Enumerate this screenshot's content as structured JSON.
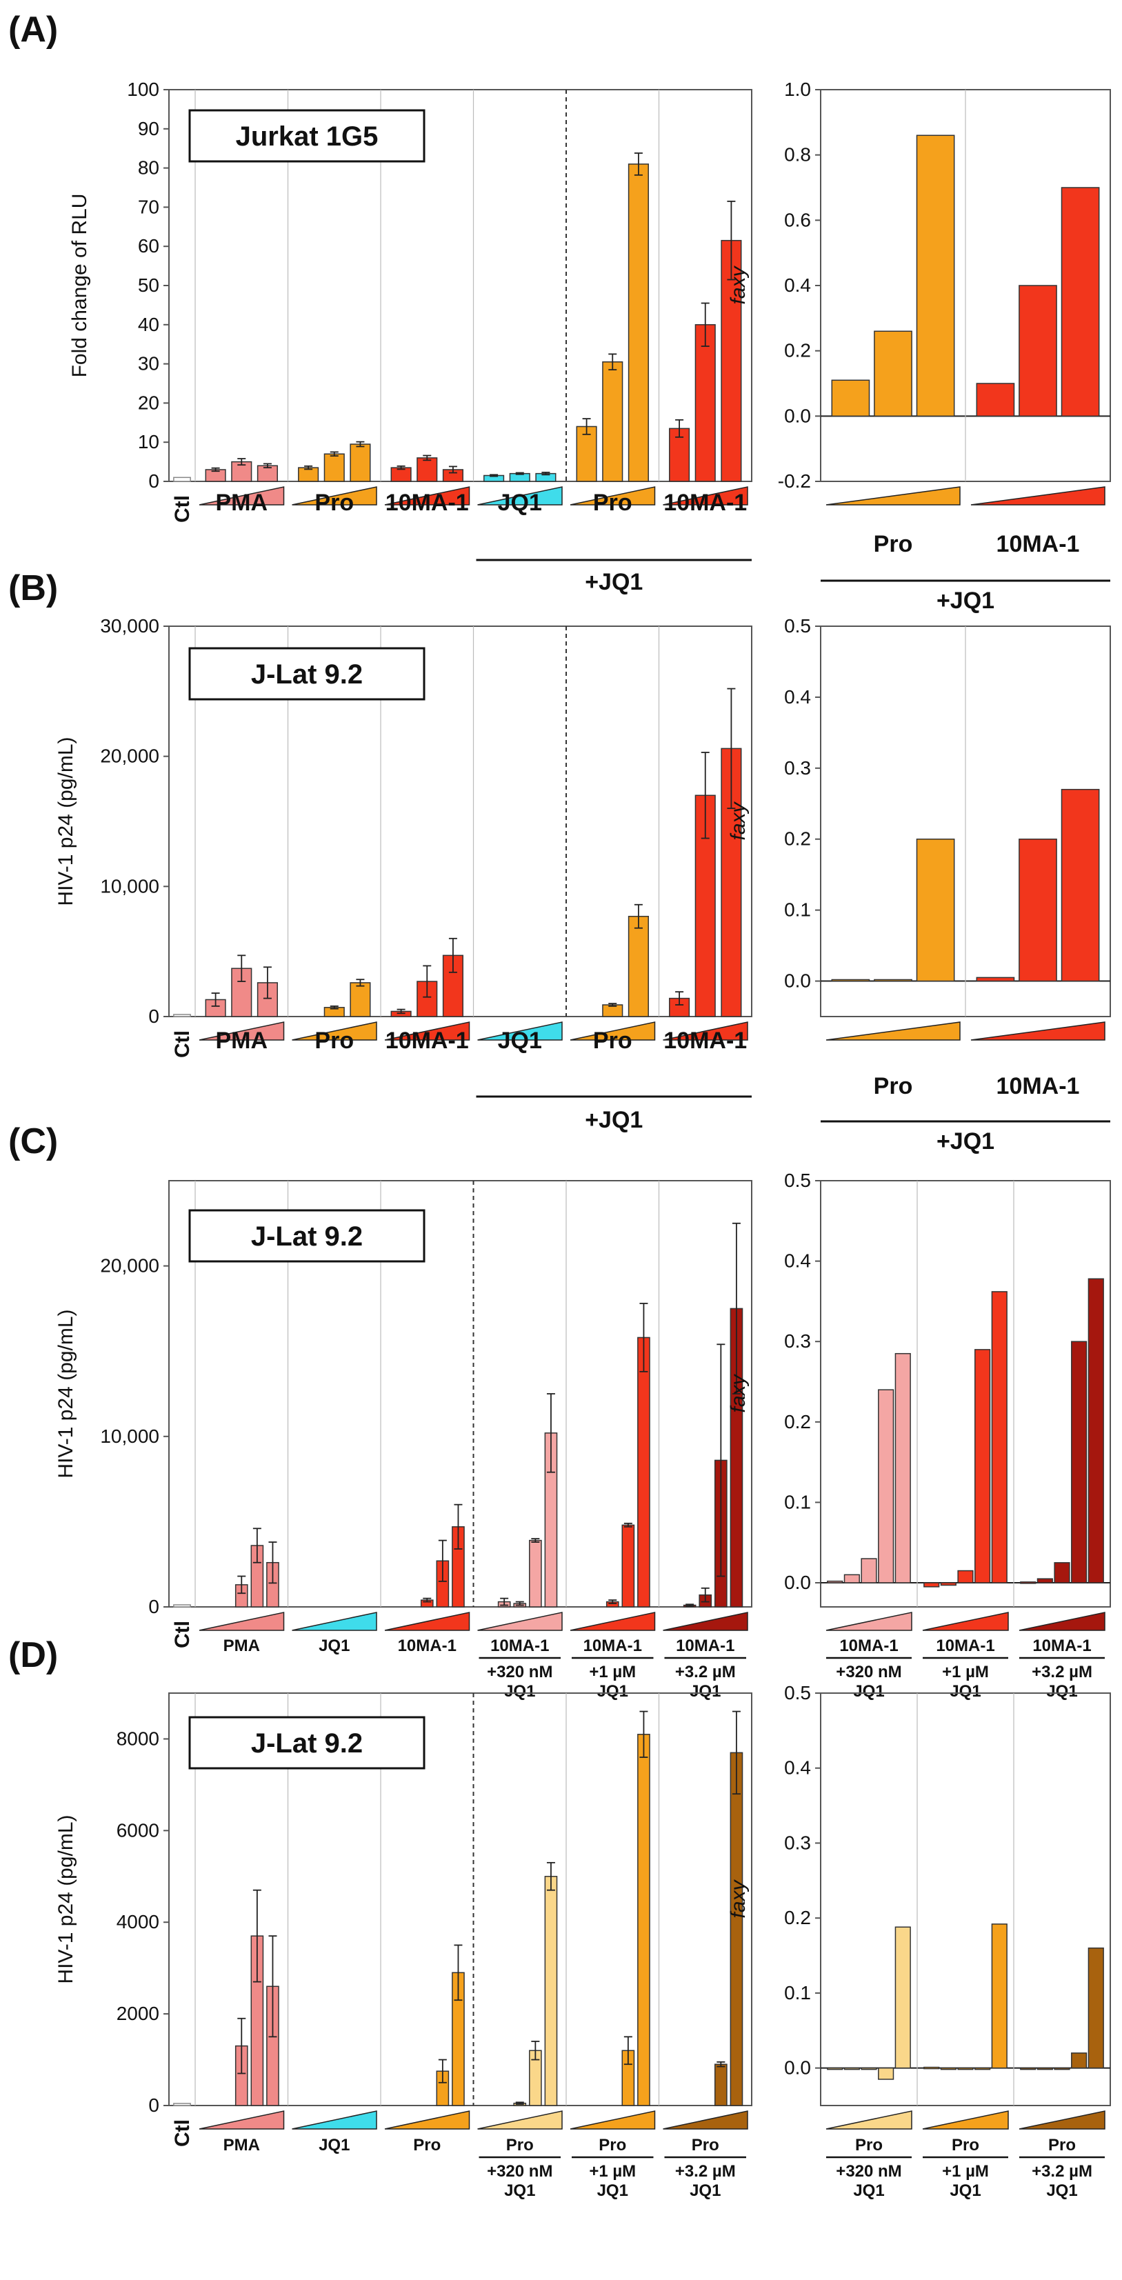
{
  "colors": {
    "pma": "#F08A88",
    "pma_light": "#F4A6A4",
    "pro": "#F5A11C",
    "pro_light": "#FAD78A",
    "pro_dark": "#A8620E",
    "ma": "#F2361C",
    "ma_dark": "#A5170E",
    "jq1": "#3FDCEB",
    "ctl": "#ffffff",
    "axis": "#555555",
    "grid": "#bbbbbb",
    "text": "#111111"
  },
  "chart_data": [
    {
      "panel": "(A)",
      "type": "bar",
      "cell_line": "Jurkat 1G5",
      "ylabel": "Fold change of RLU",
      "ylim": [
        0,
        100
      ],
      "yticks": [
        "0",
        "10",
        "20",
        "30",
        "40",
        "50",
        "60",
        "70",
        "80",
        "90",
        "100"
      ],
      "groups": [
        {
          "name": "Ctl",
          "color": "ctl",
          "values": [
            1
          ],
          "errors": [
            0
          ]
        },
        {
          "name": "PMA",
          "color": "pma",
          "values": [
            3,
            5,
            4
          ],
          "errors": [
            0.4,
            0.8,
            0.5
          ]
        },
        {
          "name": "Pro",
          "color": "pro",
          "values": [
            3.5,
            7,
            9.5
          ],
          "errors": [
            0.4,
            0.5,
            0.6
          ]
        },
        {
          "name": "10MA-1",
          "color": "ma",
          "values": [
            3.5,
            6,
            3
          ],
          "errors": [
            0.4,
            0.6,
            0.8
          ]
        },
        {
          "name": "JQ1",
          "color": "jq1",
          "values": [
            1.5,
            2,
            2
          ],
          "errors": [
            0.2,
            0.2,
            0.3
          ]
        },
        {
          "name": "Pro",
          "color": "pro",
          "values": [
            14,
            30.5,
            81
          ],
          "errors": [
            2,
            2,
            2.8
          ]
        },
        {
          "name": "10MA-1",
          "color": "ma",
          "values": [
            13.5,
            40,
            61.5
          ],
          "errors": [
            2.2,
            5.5,
            10
          ]
        }
      ],
      "bracket_label": "+JQ1",
      "faxy": {
        "ylabel": "faxy",
        "ylim": [
          -0.2,
          1.0
        ],
        "yticks": [
          "-0.2",
          "0.0",
          "0.2",
          "0.4",
          "0.6",
          "0.8",
          "1.0"
        ],
        "groups": [
          {
            "name": "Pro",
            "color": "pro",
            "values": [
              0.11,
              0.26,
              0.86
            ]
          },
          {
            "name": "10MA-1",
            "color": "ma",
            "values": [
              0.1,
              0.4,
              0.7
            ]
          }
        ],
        "bracket_label": "+JQ1"
      }
    },
    {
      "panel": "(B)",
      "type": "bar",
      "cell_line": "J-Lat 9.2",
      "ylabel": "HIV-1 p24 (pg/mL)",
      "ylim": [
        0,
        30000
      ],
      "yticks": [
        "0",
        "10,000",
        "20,000",
        "30,000"
      ],
      "groups": [
        {
          "name": "Ctl",
          "color": "ctl",
          "values": [
            0
          ],
          "errors": [
            0
          ]
        },
        {
          "name": "PMA",
          "color": "pma",
          "values": [
            1300,
            3700,
            2600
          ],
          "errors": [
            500,
            1000,
            1200
          ]
        },
        {
          "name": "Pro",
          "color": "pro",
          "values": [
            0,
            700,
            2600
          ],
          "errors": [
            0,
            100,
            250
          ]
        },
        {
          "name": "10MA-1",
          "color": "ma",
          "values": [
            400,
            2700,
            4700
          ],
          "errors": [
            150,
            1200,
            1300
          ]
        },
        {
          "name": "JQ1",
          "color": "jq1",
          "values": [
            0,
            0,
            0
          ],
          "errors": [
            0,
            0,
            0
          ]
        },
        {
          "name": "Pro",
          "color": "pro",
          "values": [
            0,
            900,
            7700
          ],
          "errors": [
            0,
            100,
            900
          ]
        },
        {
          "name": "10MA-1",
          "color": "ma",
          "values": [
            1400,
            17000,
            20600
          ],
          "errors": [
            500,
            3300,
            4600
          ]
        }
      ],
      "bracket_label": "+JQ1",
      "faxy": {
        "ylabel": "faxy",
        "ylim": [
          -0.05,
          0.5
        ],
        "yticks": [
          "0.0",
          "0.1",
          "0.2",
          "0.3",
          "0.4",
          "0.5"
        ],
        "groups": [
          {
            "name": "Pro",
            "color": "pro",
            "values": [
              0.002,
              0.002,
              0.2
            ]
          },
          {
            "name": "10MA-1",
            "color": "ma",
            "values": [
              0.005,
              0.2,
              0.27
            ]
          }
        ],
        "bracket_label": "+JQ1"
      }
    },
    {
      "panel": "(C)",
      "type": "bar",
      "cell_line": "J-Lat 9.2",
      "ylabel": "HIV-1 p24 (pg/mL)",
      "ylim": [
        0,
        25000
      ],
      "yticks": [
        "0",
        "10,000",
        "20,000"
      ],
      "groups": [
        {
          "name": "Ctl",
          "color": "ctl",
          "values": [
            0
          ],
          "errors": [
            0
          ]
        },
        {
          "name": "PMA",
          "color": "pma",
          "values": [
            0,
            0,
            1300,
            3600,
            2600
          ],
          "errors": [
            0,
            0,
            500,
            1000,
            1200
          ]
        },
        {
          "name": "JQ1",
          "color": "jq1",
          "values": [
            0,
            0,
            0,
            0,
            0
          ],
          "errors": [
            0,
            0,
            0,
            0,
            0
          ]
        },
        {
          "name": "10MA-1",
          "color": "ma",
          "values": [
            0,
            0,
            400,
            2700,
            4700
          ],
          "errors": [
            0,
            0,
            100,
            1200,
            1300
          ]
        },
        {
          "name": "10MA-1",
          "sub1": "+320 nM",
          "sub2": "JQ1",
          "color": "pma_light",
          "values": [
            0,
            300,
            200,
            3900,
            10200
          ],
          "errors": [
            0,
            200,
            100,
            100,
            2300
          ]
        },
        {
          "name": "10MA-1",
          "sub1": "+1 µM",
          "sub2": "JQ1",
          "color": "ma",
          "values": [
            0,
            0,
            300,
            4800,
            15800
          ],
          "errors": [
            0,
            0,
            100,
            100,
            2000
          ]
        },
        {
          "name": "10MA-1",
          "sub1": "+3.2 µM",
          "sub2": "JQ1",
          "color": "ma_dark",
          "values": [
            0,
            100,
            700,
            8600,
            17500
          ],
          "errors": [
            0,
            50,
            400,
            6800,
            5000
          ]
        }
      ],
      "faxy": {
        "ylabel": "faxy",
        "ylim": [
          -0.03,
          0.5
        ],
        "yticks": [
          "0.0",
          "0.1",
          "0.2",
          "0.3",
          "0.4",
          "0.5"
        ],
        "groups": [
          {
            "name": "10MA-1",
            "sub1": "+320 nM",
            "sub2": "JQ1",
            "color": "pma_light",
            "values": [
              0.002,
              0.01,
              0.03,
              0.24,
              0.285
            ]
          },
          {
            "name": "10MA-1",
            "sub1": "+1 µM",
            "sub2": "JQ1",
            "color": "ma",
            "values": [
              -0.005,
              -0.003,
              0.015,
              0.29,
              0.362
            ]
          },
          {
            "name": "10MA-1",
            "sub1": "+3.2 µM",
            "sub2": "JQ1",
            "color": "ma_dark",
            "values": [
              0.001,
              0.005,
              0.025,
              0.3,
              0.378
            ]
          }
        ]
      }
    },
    {
      "panel": "(D)",
      "type": "bar",
      "cell_line": "J-Lat 9.2",
      "ylabel": "HIV-1 p24 (pg/mL)",
      "ylim": [
        0,
        9000
      ],
      "yticks": [
        "0",
        "2000",
        "4000",
        "6000",
        "8000"
      ],
      "groups": [
        {
          "name": "Ctl",
          "color": "ctl",
          "values": [
            0
          ],
          "errors": [
            0
          ]
        },
        {
          "name": "PMA",
          "color": "pma",
          "values": [
            0,
            0,
            1300,
            3700,
            2600
          ],
          "errors": [
            0,
            0,
            600,
            1000,
            1100
          ]
        },
        {
          "name": "JQ1",
          "color": "jq1",
          "values": [
            0,
            0,
            0,
            0,
            0
          ],
          "errors": [
            0,
            0,
            0,
            0,
            0
          ]
        },
        {
          "name": "Pro",
          "color": "pro",
          "values": [
            0,
            0,
            0,
            750,
            2900
          ],
          "errors": [
            0,
            0,
            0,
            250,
            600
          ]
        },
        {
          "name": "Pro",
          "sub1": "+320 nM",
          "sub2": "JQ1",
          "color": "pro_light",
          "values": [
            0,
            0,
            50,
            1200,
            5000
          ],
          "errors": [
            0,
            0,
            20,
            200,
            300
          ]
        },
        {
          "name": "Pro",
          "sub1": "+1 µM",
          "sub2": "JQ1",
          "color": "pro",
          "values": [
            0,
            0,
            0,
            1200,
            8100
          ],
          "errors": [
            0,
            0,
            0,
            300,
            500
          ]
        },
        {
          "name": "Pro",
          "sub1": "+3.2 µM",
          "sub2": "JQ1",
          "color": "pro_dark",
          "values": [
            0,
            0,
            0,
            900,
            7700
          ],
          "errors": [
            0,
            0,
            0,
            50,
            900
          ]
        }
      ],
      "faxy": {
        "ylabel": "faxy",
        "ylim": [
          -0.05,
          0.5
        ],
        "yticks": [
          "0.0",
          "0.1",
          "0.2",
          "0.3",
          "0.4",
          "0.5"
        ],
        "groups": [
          {
            "name": "Pro",
            "sub1": "+320 nM",
            "sub2": "JQ1",
            "color": "pro_light",
            "values": [
              0.0,
              0.0,
              0.0,
              -0.015,
              0.188
            ]
          },
          {
            "name": "Pro",
            "sub1": "+1 µM",
            "sub2": "JQ1",
            "color": "pro",
            "values": [
              0.001,
              0.0,
              0.0,
              0.0,
              0.192
            ]
          },
          {
            "name": "Pro",
            "sub1": "+3.2 µM",
            "sub2": "JQ1",
            "color": "pro_dark",
            "values": [
              0.0,
              0.0,
              0.0,
              0.02,
              0.16
            ]
          }
        ]
      }
    }
  ]
}
